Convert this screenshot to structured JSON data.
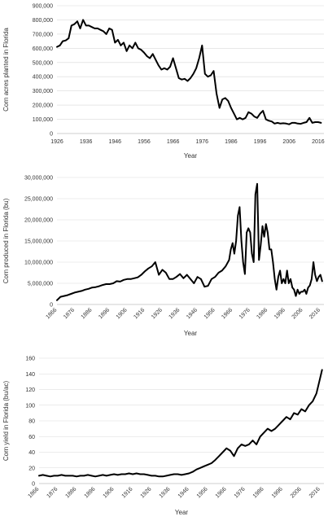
{
  "chart_data": [
    {
      "type": "line",
      "title": "",
      "xlabel": "Year",
      "ylabel": "Corn acres planted in Florida",
      "xlim": [
        1926,
        2018
      ],
      "ylim": [
        0,
        900000
      ],
      "xticks": [
        1926,
        1936,
        1946,
        1956,
        1966,
        1976,
        1986,
        1996,
        2006,
        2016
      ],
      "x_tick_labels": [
        "1926",
        "1936",
        "1946",
        "1956",
        "1966",
        "1976",
        "1986",
        "1996",
        "2006",
        "2016"
      ],
      "yticks": [
        0,
        100000,
        200000,
        300000,
        400000,
        500000,
        600000,
        700000,
        800000,
        900000
      ],
      "y_tick_labels": [
        "0",
        "100,000",
        "200,000",
        "300,000",
        "400,000",
        "500,000",
        "600,000",
        "700,000",
        "800,000",
        "900,000"
      ],
      "x_tick_rotation": 0,
      "grid": true,
      "legend": false,
      "series": [
        {
          "x": [
            1926,
            1927,
            1928,
            1929,
            1930,
            1931,
            1932,
            1933,
            1934,
            1935,
            1936,
            1937,
            1938,
            1939,
            1940,
            1941,
            1942,
            1943,
            1944,
            1945,
            1946,
            1947,
            1948,
            1949,
            1950,
            1951,
            1952,
            1953,
            1954,
            1955,
            1956,
            1957,
            1958,
            1959,
            1960,
            1961,
            1962,
            1963,
            1964,
            1965,
            1966,
            1967,
            1968,
            1969,
            1970,
            1971,
            1972,
            1973,
            1974,
            1975,
            1976,
            1977,
            1978,
            1979,
            1980,
            1981,
            1982,
            1983,
            1984,
            1985,
            1986,
            1987,
            1988,
            1989,
            1990,
            1991,
            1992,
            1993,
            1994,
            1995,
            1996,
            1997,
            1998,
            1999,
            2000,
            2001,
            2002,
            2003,
            2004,
            2005,
            2006,
            2007,
            2008,
            2009,
            2010,
            2011,
            2012,
            2013,
            2014,
            2015,
            2016,
            2017
          ],
          "values": [
            610000,
            620000,
            650000,
            655000,
            670000,
            760000,
            770000,
            790000,
            740000,
            800000,
            760000,
            760000,
            750000,
            740000,
            740000,
            730000,
            720000,
            700000,
            740000,
            730000,
            640000,
            660000,
            620000,
            640000,
            580000,
            620000,
            600000,
            640000,
            600000,
            590000,
            570000,
            545000,
            530000,
            560000,
            520000,
            480000,
            450000,
            460000,
            450000,
            470000,
            530000,
            460000,
            390000,
            380000,
            385000,
            370000,
            390000,
            420000,
            460000,
            530000,
            620000,
            420000,
            400000,
            410000,
            440000,
            280000,
            180000,
            240000,
            250000,
            230000,
            180000,
            140000,
            100000,
            110000,
            100000,
            110000,
            150000,
            140000,
            120000,
            110000,
            140000,
            160000,
            100000,
            90000,
            85000,
            70000,
            75000,
            70000,
            72000,
            70000,
            65000,
            75000,
            75000,
            70000,
            68000,
            75000,
            80000,
            110000,
            75000,
            80000,
            80000,
            75000
          ]
        }
      ]
    },
    {
      "type": "line",
      "title": "",
      "xlabel": "Year",
      "ylabel": "Corn produced in Florida (bu)",
      "xlim": [
        1866,
        2018
      ],
      "ylim": [
        0,
        30000000
      ],
      "xticks": [
        1866,
        1876,
        1886,
        1896,
        1906,
        1916,
        1926,
        1936,
        1946,
        1956,
        1966,
        1976,
        1986,
        1996,
        2006,
        2016
      ],
      "x_tick_labels": [
        "1866",
        "1876",
        "1886",
        "1896",
        "1906",
        "1916",
        "1926",
        "1936",
        "1946",
        "1956",
        "1966",
        "1976",
        "1986",
        "1996",
        "2006",
        "2016"
      ],
      "yticks": [
        0,
        5000000,
        10000000,
        15000000,
        20000000,
        25000000,
        30000000
      ],
      "y_tick_labels": [
        "0",
        "5,000,000",
        "10,000,000",
        "15,000,000",
        "20,000,000",
        "25,000,000",
        "30,000,000"
      ],
      "x_tick_rotation": -45,
      "grid": true,
      "legend": false,
      "series": [
        {
          "x": [
            1866,
            1868,
            1870,
            1872,
            1874,
            1876,
            1878,
            1880,
            1882,
            1884,
            1886,
            1888,
            1890,
            1892,
            1894,
            1896,
            1898,
            1900,
            1902,
            1904,
            1906,
            1908,
            1910,
            1912,
            1914,
            1916,
            1918,
            1920,
            1922,
            1924,
            1926,
            1928,
            1930,
            1932,
            1934,
            1936,
            1938,
            1940,
            1942,
            1944,
            1946,
            1948,
            1950,
            1952,
            1954,
            1956,
            1958,
            1960,
            1962,
            1964,
            1965,
            1966,
            1967,
            1968,
            1969,
            1970,
            1971,
            1972,
            1973,
            1974,
            1975,
            1976,
            1977,
            1978,
            1979,
            1980,
            1981,
            1982,
            1983,
            1984,
            1985,
            1986,
            1987,
            1988,
            1989,
            1990,
            1991,
            1992,
            1993,
            1994,
            1995,
            1996,
            1997,
            1998,
            1999,
            2000,
            2001,
            2002,
            2003,
            2004,
            2005,
            2006,
            2007,
            2008,
            2009,
            2010,
            2011,
            2012,
            2013,
            2014,
            2015,
            2016,
            2017
          ],
          "values": [
            1000000,
            1800000,
            2000000,
            2200000,
            2500000,
            2800000,
            3000000,
            3200000,
            3500000,
            3700000,
            4000000,
            4100000,
            4300000,
            4600000,
            4800000,
            4800000,
            5000000,
            5500000,
            5400000,
            5800000,
            6000000,
            6000000,
            6200000,
            6400000,
            7000000,
            7800000,
            8500000,
            9000000,
            10000000,
            7000000,
            8200000,
            7500000,
            6000000,
            6000000,
            6500000,
            7200000,
            6200000,
            7000000,
            6000000,
            5000000,
            6500000,
            6000000,
            4200000,
            4400000,
            6000000,
            6500000,
            7500000,
            8000000,
            9000000,
            10500000,
            13000000,
            14500000,
            12000000,
            15000000,
            21000000,
            23000000,
            15000000,
            10000000,
            7200000,
            17000000,
            18000000,
            17000000,
            12000000,
            10000000,
            26000000,
            28500000,
            10500000,
            14000000,
            18500000,
            16000000,
            19000000,
            17000000,
            13000000,
            13000000,
            10000000,
            6000000,
            3500000,
            6500000,
            8000000,
            5000000,
            6000000,
            5000000,
            8000000,
            5000000,
            6000000,
            4000000,
            3500000,
            2000000,
            3500000,
            2500000,
            3000000,
            3000000,
            3500000,
            2500000,
            4000000,
            4500000,
            6000000,
            10000000,
            7000000,
            5500000,
            6500000,
            7000000,
            5500000
          ]
        }
      ]
    },
    {
      "type": "line",
      "title": "",
      "xlabel": "Year",
      "ylabel": "Corn yield in Florida (bu/ac)",
      "xlim": [
        1866,
        2018
      ],
      "ylim": [
        0,
        160
      ],
      "xticks": [
        1866,
        1876,
        1886,
        1896,
        1906,
        1916,
        1926,
        1936,
        1946,
        1956,
        1966,
        1976,
        1986,
        1996,
        2006,
        2016
      ],
      "x_tick_labels": [
        "1866",
        "1876",
        "1886",
        "1896",
        "1906",
        "1916",
        "1926",
        "1936",
        "1946",
        "1956",
        "1966",
        "1976",
        "1986",
        "1996",
        "2006",
        "2016"
      ],
      "yticks": [
        0,
        20,
        40,
        60,
        80,
        100,
        120,
        140,
        160
      ],
      "y_tick_labels": [
        "0",
        "20",
        "40",
        "60",
        "80",
        "100",
        "120",
        "140",
        "160"
      ],
      "x_tick_rotation": -45,
      "grid": true,
      "legend": false,
      "series": [
        {
          "x": [
            1866,
            1868,
            1870,
            1872,
            1874,
            1876,
            1878,
            1880,
            1882,
            1884,
            1886,
            1888,
            1890,
            1892,
            1894,
            1896,
            1898,
            1900,
            1902,
            1904,
            1906,
            1908,
            1910,
            1912,
            1914,
            1916,
            1918,
            1920,
            1922,
            1924,
            1926,
            1928,
            1930,
            1932,
            1934,
            1936,
            1938,
            1940,
            1942,
            1944,
            1946,
            1948,
            1950,
            1952,
            1954,
            1956,
            1958,
            1960,
            1962,
            1964,
            1966,
            1968,
            1970,
            1972,
            1974,
            1976,
            1978,
            1980,
            1982,
            1984,
            1986,
            1988,
            1990,
            1992,
            1994,
            1996,
            1998,
            2000,
            2002,
            2004,
            2006,
            2008,
            2010,
            2012,
            2014,
            2016,
            2017
          ],
          "values": [
            10,
            11,
            10,
            9,
            10,
            10,
            11,
            10,
            10,
            10,
            9,
            10,
            10,
            11,
            10,
            9,
            10,
            11,
            10,
            11,
            12,
            11,
            12,
            12,
            13,
            12,
            13,
            12,
            12,
            11,
            10,
            10,
            9,
            9,
            10,
            11,
            12,
            12,
            11,
            12,
            13,
            15,
            18,
            20,
            22,
            24,
            26,
            30,
            35,
            40,
            45,
            42,
            35,
            45,
            50,
            48,
            50,
            55,
            50,
            60,
            65,
            70,
            67,
            70,
            75,
            80,
            85,
            82,
            90,
            88,
            95,
            92,
            100,
            105,
            115,
            135,
            145
          ]
        }
      ]
    }
  ]
}
